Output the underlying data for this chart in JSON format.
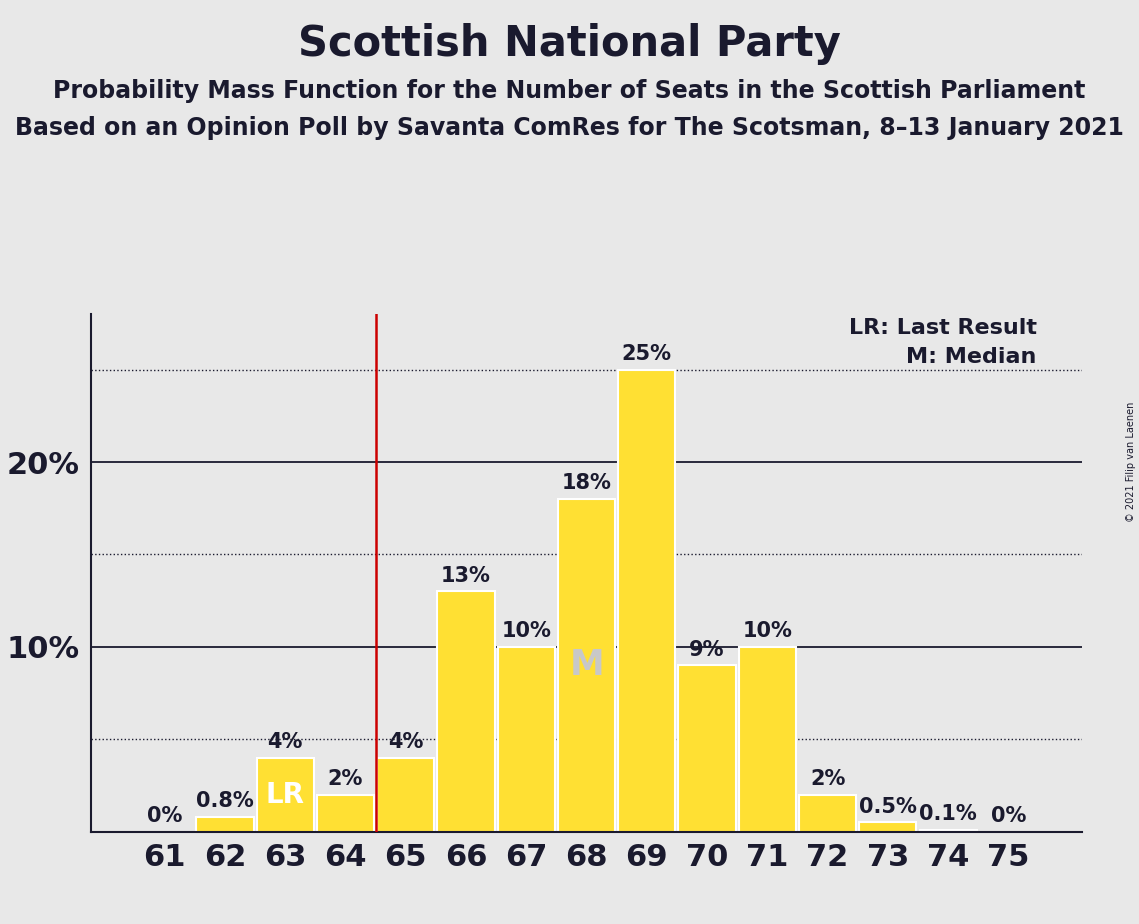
{
  "title": "Scottish National Party",
  "subtitle1": "Probability Mass Function for the Number of Seats in the Scottish Parliament",
  "subtitle2": "Based on an Opinion Poll by Savanta ComRes for The Scotsman, 8–13 January 2021",
  "copyright": "© 2021 Filip van Laenen",
  "categories": [
    61,
    62,
    63,
    64,
    65,
    66,
    67,
    68,
    69,
    70,
    71,
    72,
    73,
    74,
    75
  ],
  "values": [
    0.0,
    0.8,
    4.0,
    2.0,
    4.0,
    13.0,
    10.0,
    18.0,
    25.0,
    9.0,
    10.0,
    2.0,
    0.5,
    0.1,
    0.0
  ],
  "bar_color": "#FFE033",
  "bar_edge_color": "#FFFFFF",
  "background_color": "#E8E8E8",
  "last_result_cat": 63,
  "median_cat": 68,
  "lr_label": "LR",
  "m_label": "M",
  "legend_lr": "LR: Last Result",
  "legend_m": "M: Median",
  "major_yticks": [
    10,
    20
  ],
  "dotted_yticks": [
    5,
    15,
    25
  ],
  "ylim": [
    0,
    28
  ],
  "title_fontsize": 30,
  "subtitle_fontsize": 17,
  "label_fontsize": 16,
  "tick_fontsize": 22,
  "bar_label_fontsize": 15,
  "text_color": "#1a1a2e",
  "lr_line_color": "#CC0000",
  "bar_label_color_light": "#FFFFFF",
  "m_label_color": "#C8C8C8"
}
